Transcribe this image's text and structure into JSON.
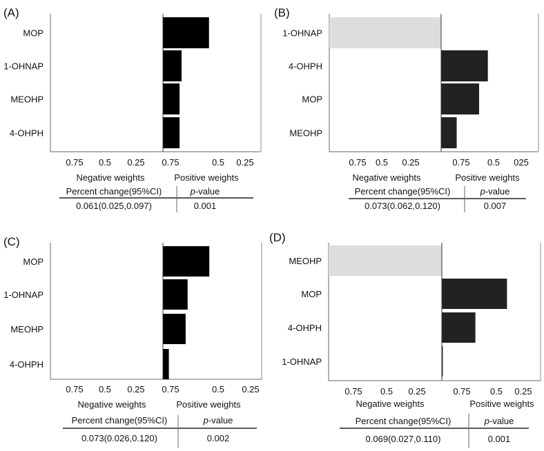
{
  "chart_data": [
    {
      "type": "bar",
      "panel_label": "(A)",
      "orientation": "horizontal-diverging",
      "categories": [
        "MOP",
        "1-OHNAP",
        "MEOHP",
        "4-OHPH"
      ],
      "values": [
        0.47,
        0.19,
        0.17,
        0.17
      ],
      "neg_ticks": [
        "0.75",
        "0.5",
        "0.25"
      ],
      "pos_ticks": [
        "0.75",
        "0.5",
        "0.25"
      ],
      "neg_label": "Negative weights",
      "pos_label": "Positive  weights",
      "table": {
        "col1_header": "Percent change(95%CI)",
        "col2_header": "p-value",
        "col2_italic": "p",
        "col2_rest": "-value",
        "col1_value": "0.061(0.025,0.097)",
        "col2_value": "0.001"
      }
    },
    {
      "type": "bar",
      "panel_label": "(B)",
      "orientation": "horizontal-diverging",
      "categories": [
        "1-OHNAP",
        "4-OHPH",
        "MOP",
        "MEOHP"
      ],
      "values": [
        -1.0,
        0.48,
        0.39,
        0.16
      ],
      "neg_ticks": [
        "0.75",
        "0.5",
        "0.25"
      ],
      "pos_ticks": [
        "0.75",
        "0.5",
        "025"
      ],
      "neg_label": "Negative weights",
      "pos_label": "Positive  weights",
      "table": {
        "col1_header": "Percent change(95%CI)",
        "col2_header": "p-value",
        "col2_italic": "p",
        "col2_rest": "-value",
        "col1_value": "0.073(0.062,0.120)",
        "col2_value": "0.007"
      }
    },
    {
      "type": "bar",
      "panel_label": "(C)",
      "orientation": "horizontal-diverging",
      "categories": [
        "MOP",
        "1-OHNAP",
        "MEOHP",
        "4-OHPH"
      ],
      "values": [
        0.47,
        0.25,
        0.23,
        0.06
      ],
      "neg_ticks": [
        "0.75",
        "0.5",
        "0.25"
      ],
      "pos_ticks": [
        "0.75",
        "0.5",
        "0.25"
      ],
      "neg_label": "Negative weights",
      "pos_label": "Positive  weights",
      "table": {
        "col1_header": "Percent change(95%CI)",
        "col2_header": "p-value",
        "col2_italic": "p",
        "col2_rest": "-value",
        "col1_value": "0.073(0.026,0.120)",
        "col2_value": "0.002"
      }
    },
    {
      "type": "bar",
      "panel_label": "(D)",
      "orientation": "horizontal-diverging",
      "categories": [
        "MEOHP",
        "MOP",
        "4-OHPH",
        "1-OHNAP"
      ],
      "values": [
        -1.0,
        0.66,
        0.34,
        0.01
      ],
      "neg_ticks": [
        "0.75",
        "0.5",
        "0.25"
      ],
      "pos_ticks": [
        "0.75",
        "0.5",
        "0.25"
      ],
      "neg_label": "Negative weights",
      "pos_label": "Positive  weights",
      "table": {
        "col1_header": "Percent change(95%CI)",
        "col2_header": "p-value",
        "col2_italic": "p",
        "col2_rest": "-value",
        "col1_value": "0.069(0.027,0.110)",
        "col2_value": "0.001"
      }
    }
  ],
  "colors": {
    "positive_bar": "#000000",
    "positive_bar_dark": "#222222",
    "negative_bar": "#dddddd",
    "axis": "#555555"
  }
}
